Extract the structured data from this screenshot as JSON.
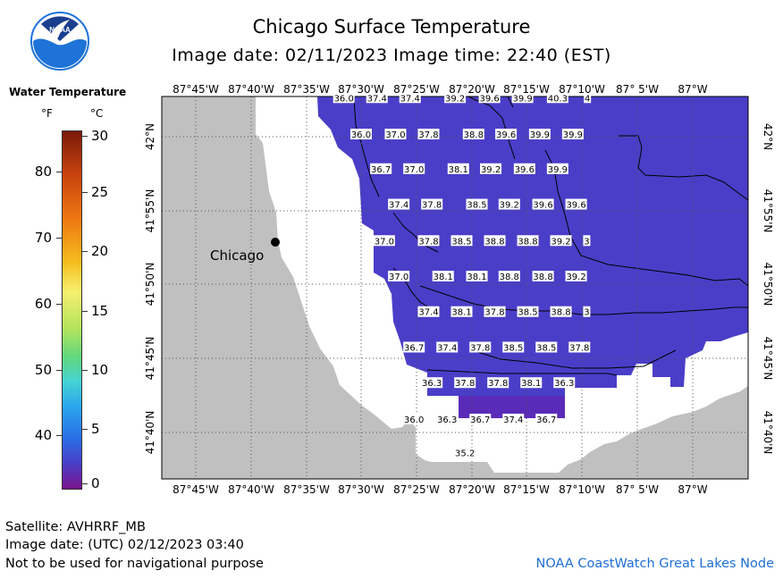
{
  "title": "Chicago Surface Temperature",
  "subtitle": "Image date: 02/11/2023    Image time: 22:40 (EST)",
  "logo_text": "NOAA",
  "legend": {
    "title": "Water Temperature",
    "unit_f": "°F",
    "unit_c": "°C",
    "f_ticks": [
      "80",
      "70",
      "60",
      "50",
      "40"
    ],
    "c_ticks": [
      "30",
      "25",
      "20",
      "15",
      "10",
      "5",
      "0"
    ]
  },
  "map": {
    "top_lon_labels": [
      "87°45'W",
      "87°40'W",
      "87°35'W",
      "87°30'W",
      "87°25'W",
      "87°20'W",
      "87°15'W",
      "87°10'W",
      "87° 5'W",
      "87°W"
    ],
    "bottom_lon_labels": [
      "87°45'W",
      "87°40'W",
      "87°35'W",
      "87°30'W",
      "87°25'W",
      "87°20'W",
      "87°15'W",
      "87°10'W",
      "87° 5'W",
      "87°W"
    ],
    "lat_labels": [
      "42°N",
      "41°55'N",
      "41°50'N",
      "41°45'N",
      "41°40'N"
    ],
    "city_label": "Chicago",
    "temperature_readings": [
      {
        "lat": 42.044,
        "lon": -87.539,
        "value": "36.0"
      },
      {
        "lat": 42.044,
        "lon": -87.489,
        "value": "37.4"
      },
      {
        "lat": 42.044,
        "lon": -87.439,
        "value": "37.4"
      },
      {
        "lat": 42.044,
        "lon": -87.371,
        "value": "39.2"
      },
      {
        "lat": 42.044,
        "lon": -87.319,
        "value": "39.6"
      },
      {
        "lat": 42.044,
        "lon": -87.269,
        "value": "39.9"
      },
      {
        "lat": 42.044,
        "lon": -87.216,
        "value": "40.3"
      },
      {
        "lat": 42.044,
        "lon": -87.171,
        "value": "4"
      },
      {
        "lat": 42.003,
        "lon": -87.513,
        "value": "36.0"
      },
      {
        "lat": 42.003,
        "lon": -87.461,
        "value": "37.0"
      },
      {
        "lat": 42.003,
        "lon": -87.411,
        "value": "37.8"
      },
      {
        "lat": 42.003,
        "lon": -87.343,
        "value": "38.8"
      },
      {
        "lat": 42.003,
        "lon": -87.294,
        "value": "39.6"
      },
      {
        "lat": 42.003,
        "lon": -87.243,
        "value": "39.9"
      },
      {
        "lat": 42.003,
        "lon": -87.193,
        "value": "39.9"
      },
      {
        "lat": 41.964,
        "lon": -87.483,
        "value": "36.7"
      },
      {
        "lat": 41.964,
        "lon": -87.433,
        "value": "37.0"
      },
      {
        "lat": 41.964,
        "lon": -87.366,
        "value": "38.1"
      },
      {
        "lat": 41.964,
        "lon": -87.317,
        "value": "39.2"
      },
      {
        "lat": 41.964,
        "lon": -87.266,
        "value": "39.6"
      },
      {
        "lat": 41.964,
        "lon": -87.216,
        "value": "39.9"
      },
      {
        "lat": 41.924,
        "lon": -87.456,
        "value": "37.4"
      },
      {
        "lat": 41.924,
        "lon": -87.406,
        "value": "37.8"
      },
      {
        "lat": 41.924,
        "lon": -87.338,
        "value": "38.5"
      },
      {
        "lat": 41.924,
        "lon": -87.289,
        "value": "39.2"
      },
      {
        "lat": 41.924,
        "lon": -87.238,
        "value": "39.6"
      },
      {
        "lat": 41.924,
        "lon": -87.188,
        "value": "39.6"
      },
      {
        "lat": 41.883,
        "lon": -87.478,
        "value": "37.0"
      },
      {
        "lat": 41.883,
        "lon": -87.411,
        "value": "37.8"
      },
      {
        "lat": 41.883,
        "lon": -87.361,
        "value": "38.5"
      },
      {
        "lat": 41.883,
        "lon": -87.311,
        "value": "38.8"
      },
      {
        "lat": 41.883,
        "lon": -87.261,
        "value": "38.8"
      },
      {
        "lat": 41.883,
        "lon": -87.211,
        "value": "39.2"
      },
      {
        "lat": 41.883,
        "lon": -87.172,
        "value": "3"
      },
      {
        "lat": 41.843,
        "lon": -87.456,
        "value": "37.0"
      },
      {
        "lat": 41.843,
        "lon": -87.389,
        "value": "38.1"
      },
      {
        "lat": 41.843,
        "lon": -87.338,
        "value": "38.1"
      },
      {
        "lat": 41.843,
        "lon": -87.289,
        "value": "38.8"
      },
      {
        "lat": 41.843,
        "lon": -87.238,
        "value": "38.8"
      },
      {
        "lat": 41.843,
        "lon": -87.188,
        "value": "39.2"
      },
      {
        "lat": 41.803,
        "lon": -87.411,
        "value": "37.4"
      },
      {
        "lat": 41.803,
        "lon": -87.361,
        "value": "38.1"
      },
      {
        "lat": 41.803,
        "lon": -87.311,
        "value": "37.8"
      },
      {
        "lat": 41.803,
        "lon": -87.261,
        "value": "38.5"
      },
      {
        "lat": 41.803,
        "lon": -87.211,
        "value": "38.8"
      },
      {
        "lat": 41.803,
        "lon": -87.172,
        "value": "3"
      },
      {
        "lat": 41.763,
        "lon": -87.433,
        "value": "36.7"
      },
      {
        "lat": 41.763,
        "lon": -87.383,
        "value": "37.4"
      },
      {
        "lat": 41.763,
        "lon": -87.333,
        "value": "37.8"
      },
      {
        "lat": 41.763,
        "lon": -87.283,
        "value": "38.5"
      },
      {
        "lat": 41.763,
        "lon": -87.233,
        "value": "38.5"
      },
      {
        "lat": 41.763,
        "lon": -87.183,
        "value": "37.8"
      },
      {
        "lat": 41.723,
        "lon": -87.406,
        "value": "36.3"
      },
      {
        "lat": 41.723,
        "lon": -87.356,
        "value": "37.8"
      },
      {
        "lat": 41.723,
        "lon": -87.306,
        "value": "37.8"
      },
      {
        "lat": 41.723,
        "lon": -87.256,
        "value": "38.1"
      },
      {
        "lat": 41.723,
        "lon": -87.206,
        "value": "36.3"
      },
      {
        "lat": 41.682,
        "lon": -87.433,
        "value": "36.0"
      },
      {
        "lat": 41.682,
        "lon": -87.383,
        "value": "36.3"
      },
      {
        "lat": 41.682,
        "lon": -87.333,
        "value": "36.7"
      },
      {
        "lat": 41.682,
        "lon": -87.283,
        "value": "37.4"
      },
      {
        "lat": 41.682,
        "lon": -87.233,
        "value": "36.7"
      },
      {
        "lat": 41.644,
        "lon": -87.356,
        "value": "35.2"
      }
    ]
  },
  "footer": {
    "satellite": "Satellite: AVHRRF_MB",
    "utc_date": "Image date: (UTC) 02/12/2023  03:40",
    "disclaimer": "Not to be used for navigational purpose",
    "credit": "NOAA CoastWatch Great Lakes Node"
  },
  "colors": {
    "land": "#c0c0c0",
    "ice_or_nodata": "#ffffff",
    "water_main": "#4a3ec8",
    "water_cold": "#5a2ab8",
    "credit": "#1e6fd6",
    "logo_blue": "#1e73d8"
  }
}
